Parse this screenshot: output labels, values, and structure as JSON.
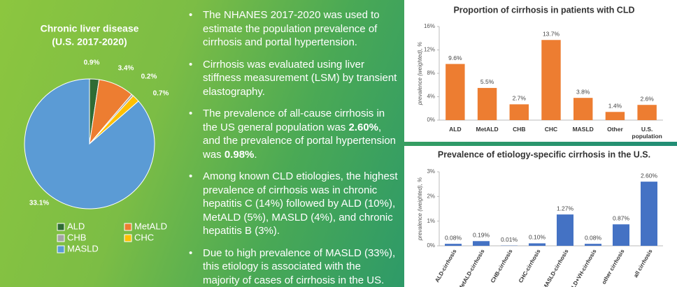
{
  "chart_data": [
    {
      "type": "pie",
      "title": "Chronic liver disease",
      "subtitle": "(U.S. 2017-2020)",
      "categories": [
        "ALD",
        "MetALD",
        "CHB",
        "CHC",
        "MASLD"
      ],
      "values": [
        0.9,
        3.4,
        0.2,
        0.7,
        33.1
      ],
      "value_labels": [
        "0.9%",
        "3.4%",
        "0.2%",
        "0.7%",
        "33.1%"
      ],
      "colors": [
        "#2f6b34",
        "#ed7d31",
        "#a5a5a5",
        "#ffc000",
        "#5b9bd5"
      ],
      "legend": "bottom"
    },
    {
      "type": "bar",
      "title": "Proportion of cirrhosis in patients with CLD",
      "y_label": "prevalence (weighted), %",
      "categories": [
        "ALD",
        "MetALD",
        "CHB",
        "CHC",
        "MASLD",
        "Other",
        "U.S. population"
      ],
      "values": [
        9.6,
        5.5,
        2.7,
        13.7,
        3.8,
        1.4,
        2.6
      ],
      "value_labels": [
        "9.6%",
        "5.5%",
        "2.7%",
        "13.7%",
        "3.8%",
        "1.4%",
        "2.6%"
      ],
      "color": "#ed7d31",
      "ylim": [
        0,
        16
      ],
      "yticks": [
        {
          "value": 0,
          "label": "0%"
        },
        {
          "value": 4,
          "label": "4%"
        },
        {
          "value": 8,
          "label": "8%"
        },
        {
          "value": 12,
          "label": "12%"
        },
        {
          "value": 16,
          "label": "16%"
        }
      ]
    },
    {
      "type": "bar",
      "title": "Prevalence of etiology-specific cirrhosis in the U.S.",
      "y_label": "prevalence (weighted), %",
      "categories": [
        "ALD-cirrhosis",
        "MetALD-cirrhosis",
        "CHB-cirrhosis",
        "CHC-cirrhosis",
        "MASLD-cirrhosis",
        "ALD+VH-cirrhosis",
        "other cirrhosis",
        "all cirrhosis"
      ],
      "values": [
        0.08,
        0.19,
        0.01,
        0.1,
        1.27,
        0.08,
        0.87,
        2.6
      ],
      "value_labels": [
        "0.08%",
        "0.19%",
        "0.01%",
        "0.10%",
        "1.27%",
        "0.08%",
        "0.87%",
        "2.60%"
      ],
      "color": "#4472c4",
      "ylim": [
        0,
        3
      ],
      "yticks": [
        {
          "value": 0,
          "label": "0%"
        },
        {
          "value": 1,
          "label": "1%"
        },
        {
          "value": 2,
          "label": "2%"
        },
        {
          "value": 3,
          "label": "3%"
        }
      ]
    }
  ],
  "bullets": [
    "The NHANES 2017-2020 was used to estimate the population prevalence of cirrhosis and portal hypertension.",
    "Cirrhosis was evaluated using liver stiffness measurement (LSM) by transient elastography.",
    [
      "The prevalence of all-cause cirrhosis in the US general population was ",
      "2.60%",
      ", and the prevalence of portal hypertension was ",
      "0.98%",
      "."
    ],
    "Among known CLD etiologies, the highest prevalence of cirrhosis was in chronic hepatitis C (14%) followed by ALD (10%), MetALD (5%), MASLD (4%), and chronic hepatitis B (3%).",
    "Due to high prevalence of MASLD (33%), this etiology is associated with the majority of cases of cirrhosis in the US."
  ]
}
